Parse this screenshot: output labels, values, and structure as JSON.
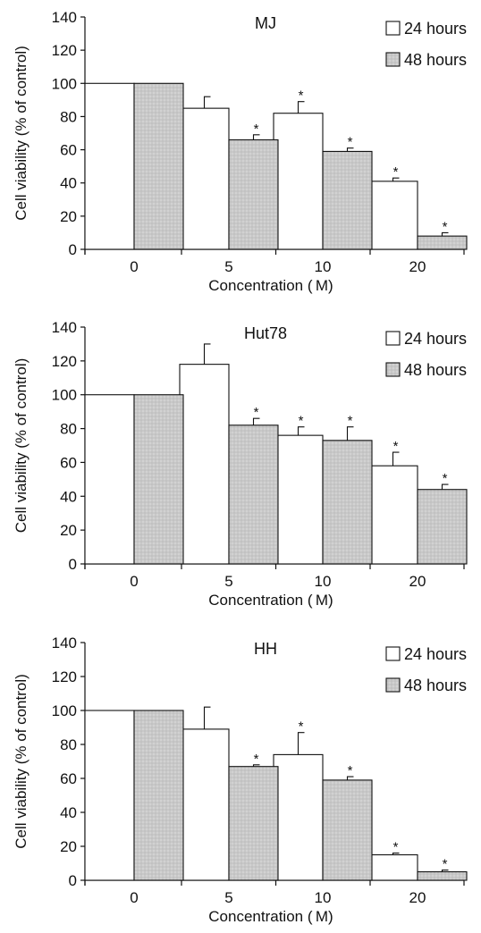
{
  "chart_data": [
    {
      "type": "bar",
      "title": "MJ",
      "categories": [
        "0",
        "5",
        "10",
        "20"
      ],
      "xlabel": "Concentration ( M)",
      "ylabel": "Cell viability (% of control)",
      "ylim": [
        0,
        140
      ],
      "yticks": [
        "0",
        "20",
        "40",
        "60",
        "80",
        "100",
        "120",
        "140"
      ],
      "legend_position": "top-right",
      "series": [
        {
          "name": "24 hours",
          "values": [
            100,
            85,
            82,
            41
          ],
          "errors": [
            0,
            7,
            7,
            2
          ],
          "significant": [
            false,
            false,
            true,
            true
          ]
        },
        {
          "name": "48 hours",
          "values": [
            100,
            66,
            59,
            8
          ],
          "errors": [
            0,
            3,
            2,
            2
          ],
          "significant": [
            false,
            true,
            true,
            true
          ]
        }
      ]
    },
    {
      "type": "bar",
      "title": "Hut78",
      "categories": [
        "0",
        "5",
        "10",
        "20"
      ],
      "xlabel": "Concentration ( M)",
      "ylabel": "Cell viability (% of control)",
      "ylim": [
        0,
        140
      ],
      "yticks": [
        "0",
        "20",
        "40",
        "60",
        "80",
        "100",
        "120",
        "140"
      ],
      "legend_position": "top-right",
      "series": [
        {
          "name": "24 hours",
          "values": [
            100,
            118,
            76,
            58
          ],
          "errors": [
            0,
            12,
            5,
            8
          ],
          "significant": [
            false,
            false,
            true,
            true
          ]
        },
        {
          "name": "48 hours",
          "values": [
            100,
            82,
            73,
            44
          ],
          "errors": [
            0,
            4,
            8,
            3
          ],
          "significant": [
            false,
            true,
            true,
            true
          ]
        }
      ]
    },
    {
      "type": "bar",
      "title": "HH",
      "categories": [
        "0",
        "5",
        "10",
        "20"
      ],
      "xlabel": "Concentration ( M)",
      "ylabel": "Cell viability (% of control)",
      "ylim": [
        0,
        140
      ],
      "yticks": [
        "0",
        "20",
        "40",
        "60",
        "80",
        "100",
        "120",
        "140"
      ],
      "legend_position": "top-right",
      "series": [
        {
          "name": "24 hours",
          "values": [
            100,
            89,
            74,
            15
          ],
          "errors": [
            0,
            13,
            13,
            1
          ],
          "significant": [
            false,
            false,
            true,
            true
          ]
        },
        {
          "name": "48 hours",
          "values": [
            100,
            67,
            59,
            5
          ],
          "errors": [
            0,
            1,
            2,
            1
          ],
          "significant": [
            false,
            true,
            true,
            true
          ]
        }
      ]
    }
  ],
  "colors": {
    "bar_24h": "#ffffff",
    "bar_48h": "#d2d2d2",
    "bar_48h_pattern": "#b9b9b9",
    "stroke": "#111111"
  },
  "marker_label": "*"
}
